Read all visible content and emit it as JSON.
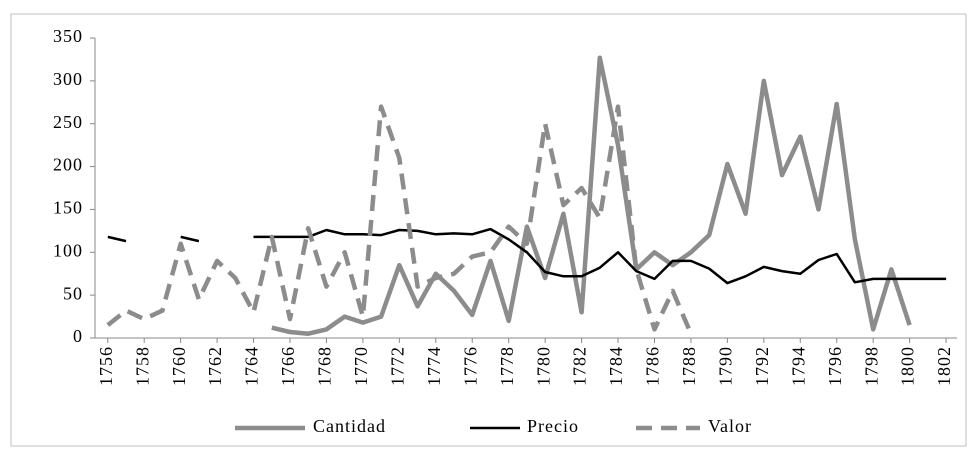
{
  "chart_data": {
    "type": "line",
    "x": [
      1756,
      1757,
      1758,
      1759,
      1760,
      1761,
      1762,
      1763,
      1764,
      1765,
      1766,
      1767,
      1768,
      1769,
      1770,
      1771,
      1772,
      1773,
      1774,
      1775,
      1776,
      1777,
      1778,
      1779,
      1780,
      1781,
      1782,
      1783,
      1784,
      1785,
      1786,
      1787,
      1788,
      1789,
      1790,
      1791,
      1792,
      1793,
      1794,
      1795,
      1796,
      1797,
      1798,
      1799,
      1800,
      1801,
      1802
    ],
    "series": [
      {
        "name": "Cantidad",
        "color": "#8c8c8c",
        "dashed": false,
        "values": [
          null,
          null,
          null,
          null,
          null,
          null,
          null,
          null,
          null,
          12,
          7,
          5,
          10,
          25,
          18,
          25,
          85,
          37,
          75,
          55,
          27,
          90,
          20,
          130,
          70,
          145,
          30,
          327,
          225,
          80,
          100,
          85,
          100,
          120,
          203,
          145,
          300,
          190,
          235,
          150,
          273,
          115,
          10,
          80,
          15,
          null,
          null
        ]
      },
      {
        "name": "Precio",
        "color": "#000000",
        "dashed": false,
        "values": [
          118,
          113,
          null,
          null,
          118,
          113,
          null,
          null,
          118,
          118,
          118,
          118,
          126,
          121,
          121,
          120,
          126,
          125,
          121,
          122,
          121,
          127,
          115,
          100,
          77,
          72,
          72,
          82,
          100,
          78,
          69,
          90,
          90,
          81,
          64,
          72,
          83,
          78,
          75,
          91,
          98,
          65,
          69,
          69,
          69,
          69,
          69
        ]
      },
      {
        "name": "Valor",
        "color": "#8c8c8c",
        "dashed": true,
        "values": [
          15,
          32,
          22,
          32,
          110,
          45,
          90,
          70,
          30,
          118,
          22,
          128,
          60,
          100,
          25,
          270,
          210,
          60,
          70,
          75,
          95,
          100,
          130,
          110,
          250,
          155,
          175,
          140,
          270,
          80,
          10,
          55,
          5,
          null,
          null,
          null,
          null,
          null,
          null,
          null,
          null,
          null,
          null,
          null,
          null,
          null,
          null
        ]
      }
    ],
    "xlim": [
      1755.3,
      1802.6
    ],
    "xticks": [
      1756,
      1758,
      1760,
      1762,
      1764,
      1766,
      1768,
      1770,
      1772,
      1774,
      1776,
      1778,
      1780,
      1782,
      1784,
      1786,
      1788,
      1790,
      1792,
      1794,
      1796,
      1798,
      1800,
      1802
    ],
    "ylim": [
      0,
      350
    ],
    "yticks": [
      0,
      50,
      100,
      150,
      200,
      250,
      300,
      350
    ],
    "grid": false,
    "legend": "bottom"
  }
}
